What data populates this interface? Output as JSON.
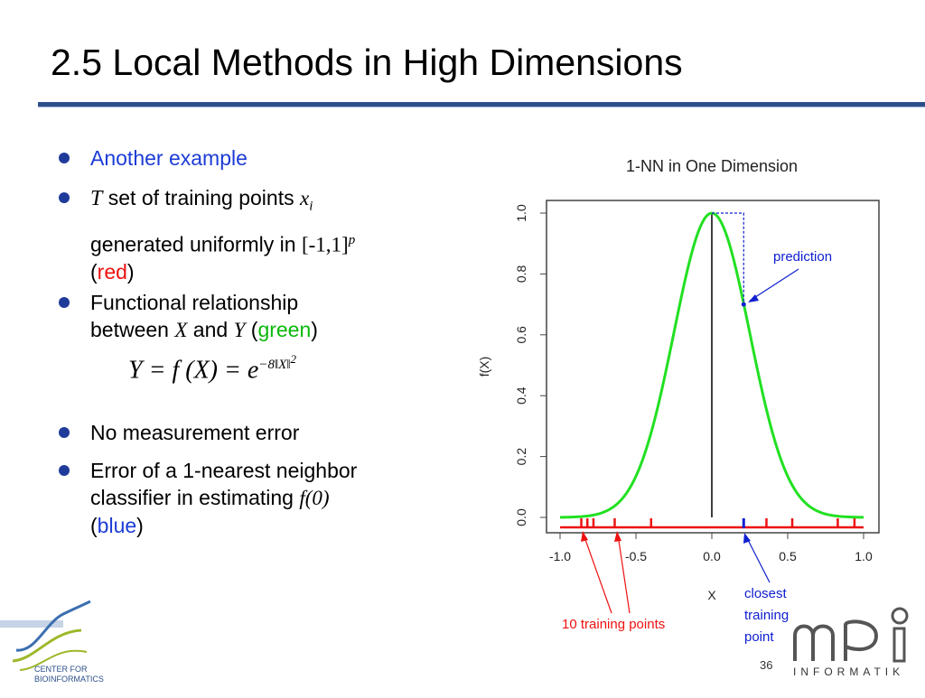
{
  "slide": {
    "title": "2.5 Local Methods in High Dimensions",
    "page_number": "36"
  },
  "bullets": {
    "b1": "Another example",
    "b2_T": "T",
    "b2_text": " set of training points ",
    "b2_x": "x",
    "b2_i": "i",
    "b2_line2": "generated uniformly in ",
    "b2_interval": "[-1,1]",
    "b2_p": "p",
    "b2_open": "(",
    "b2_red": "red",
    "b2_close": ")",
    "b3_line1": "Functional relationship",
    "b3_between": "between ",
    "b3_X": "X",
    "b3_and": " and ",
    "b3_Y": "Y",
    "b3_open": " (",
    "b3_green": "green",
    "b3_close": ")",
    "b4": "No measurement error",
    "b5_line1": "Error of a 1-nearest neighbor",
    "b5_line2": "classifier in estimating ",
    "b5_f0": "f(0)",
    "b5_open": "(",
    "b5_blue": "blue",
    "b5_close": ")"
  },
  "formula": {
    "lhs": "Y = f (X) = e",
    "exponent": "−8‖X‖",
    "power": "2"
  },
  "chart_data": {
    "type": "line",
    "title": "1-NN in One Dimension",
    "xlabel": "X",
    "ylabel": "f(X)",
    "xlim": [
      -1.0,
      1.0
    ],
    "ylim": [
      0.0,
      1.0
    ],
    "x_ticks": [
      "-1.0",
      "-0.5",
      "0.0",
      "0.5",
      "1.0"
    ],
    "y_ticks": [
      "0.0",
      "0.2",
      "0.4",
      "0.6",
      "0.8",
      "1.0"
    ],
    "grid": false,
    "function": "exp(-8*x^2)",
    "series": [
      {
        "name": "green",
        "color": "#22e022"
      },
      {
        "name": "red",
        "color": "#ee1111"
      },
      {
        "name": "blue",
        "color": "#1020d0"
      }
    ],
    "training_points_x": [
      -0.86,
      -0.82,
      -0.78,
      -0.64,
      -0.4,
      0.21,
      0.36,
      0.53,
      0.83,
      0.94
    ],
    "closest_point_x": 0.21,
    "prediction_y": 0.7,
    "annotations": {
      "prediction": "prediction",
      "closest": [
        "closest",
        "training",
        "point"
      ],
      "training_points": "10 training points"
    }
  },
  "footer": {
    "cbi_line1": "CENTER FOR",
    "cbi_line2": "BIOINFORMATICS",
    "mpi_text": "INFORMATIK"
  }
}
